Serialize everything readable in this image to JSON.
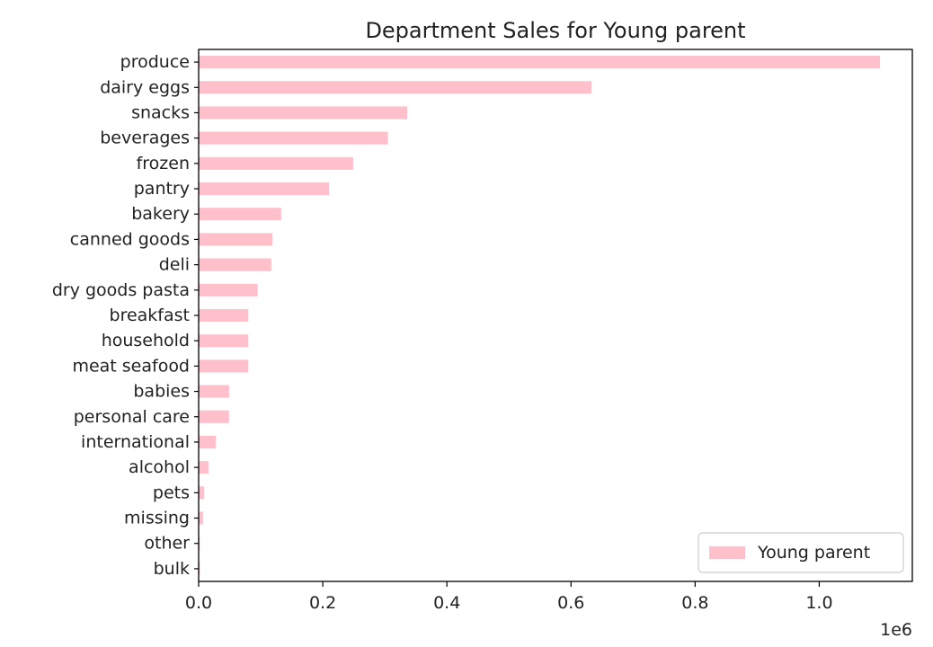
{
  "chart_data": {
    "type": "bar",
    "orientation": "horizontal",
    "title": "Department Sales for Young parent",
    "xlabel": "",
    "ylabel": "",
    "x_offset_label": "1e6",
    "xlim": [
      0,
      1150000
    ],
    "x_ticks": [
      0,
      200000,
      400000,
      600000,
      800000,
      1000000
    ],
    "x_tick_labels": [
      "0.0",
      "0.2",
      "0.4",
      "0.6",
      "0.8",
      "1.0"
    ],
    "categories": [
      "produce",
      "dairy eggs",
      "snacks",
      "beverages",
      "frozen",
      "pantry",
      "bakery",
      "canned goods",
      "deli",
      "dry goods pasta",
      "breakfast",
      "household",
      "meat seafood",
      "babies",
      "personal care",
      "international",
      "alcohol",
      "pets",
      "missing",
      "other",
      "bulk"
    ],
    "series": [
      {
        "name": "Young parent",
        "color": "#ffc0cb",
        "values": [
          1098000,
          633000,
          336000,
          305000,
          249000,
          210000,
          133000,
          119000,
          117000,
          95000,
          80000,
          80000,
          80000,
          49000,
          49000,
          28000,
          16000,
          9000,
          7000,
          2000,
          2000
        ]
      }
    ],
    "legend": {
      "position": "lower-right",
      "entries": [
        "Young parent"
      ]
    },
    "grid": false
  }
}
